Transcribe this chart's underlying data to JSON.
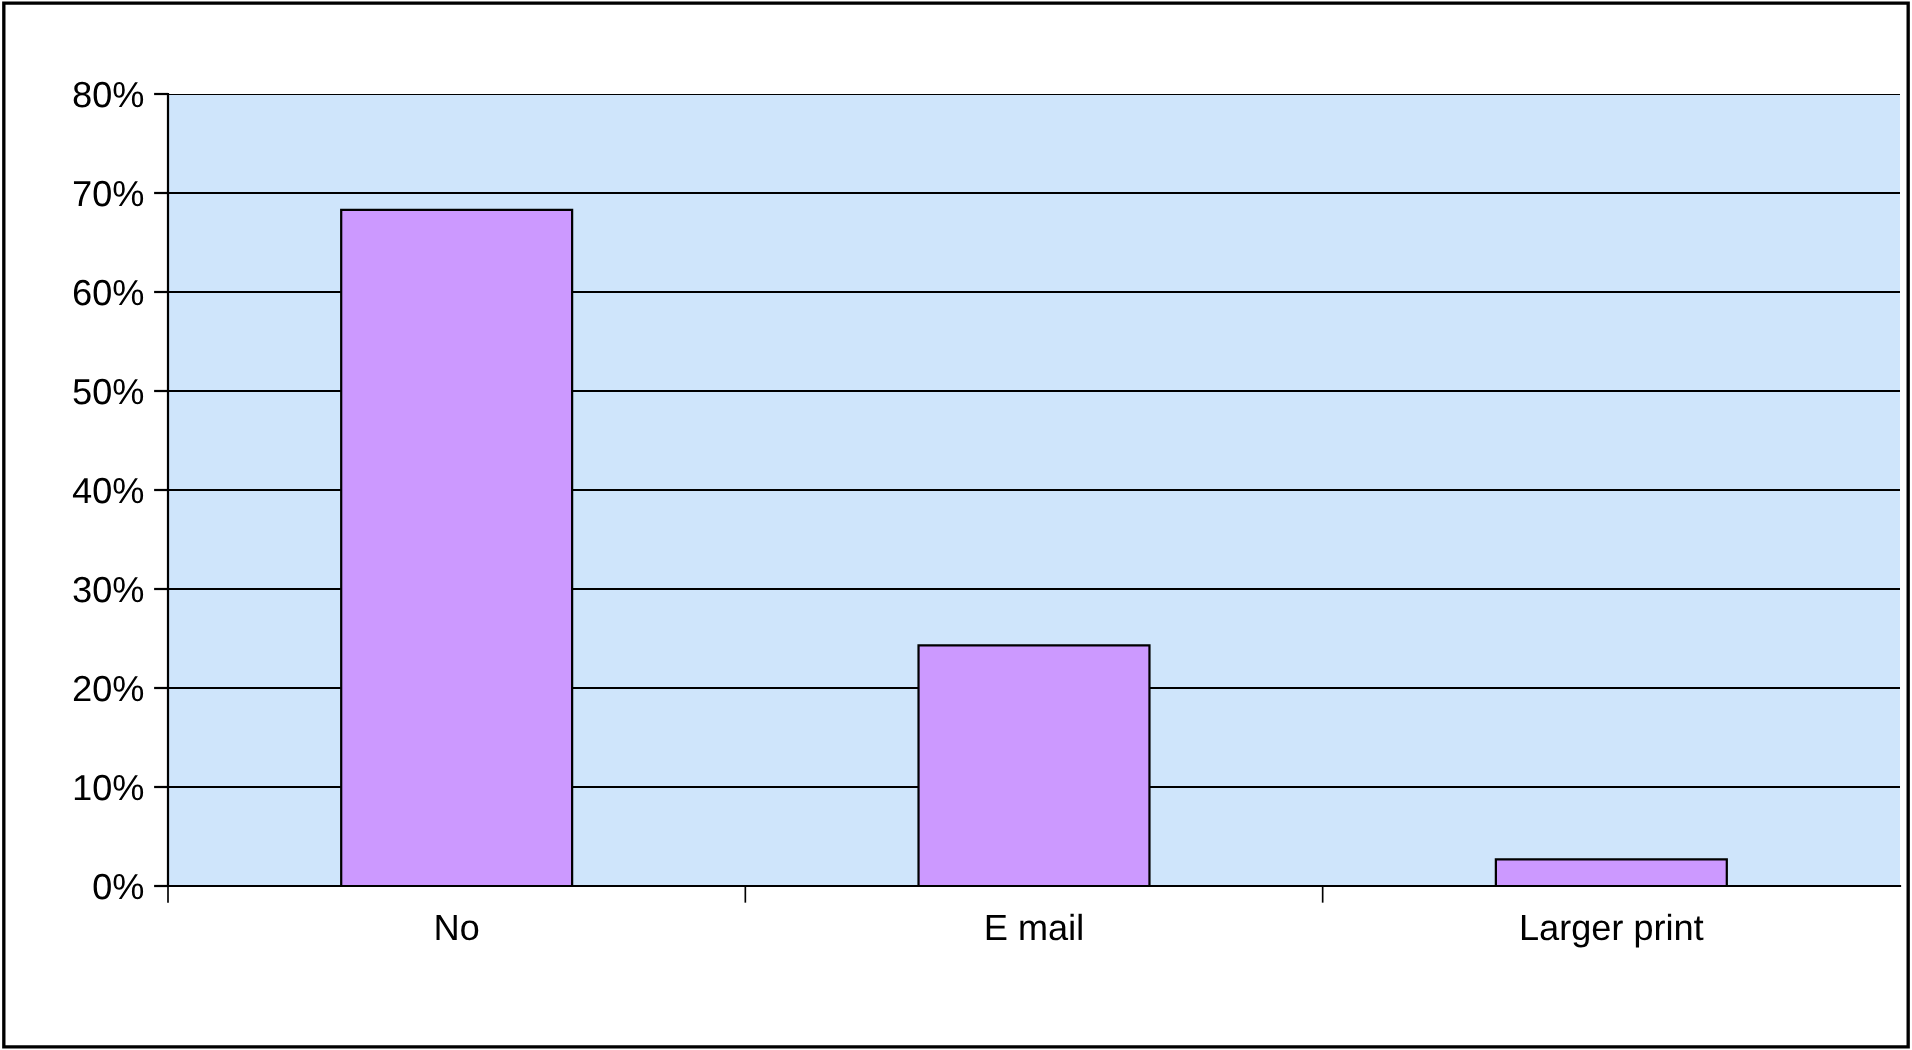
{
  "chart_data": {
    "type": "bar",
    "categories": [
      "No",
      "E mail",
      "Larger print"
    ],
    "values": [
      68.3,
      24.3,
      2.7
    ],
    "color": "#cc99ff",
    "ylim": [
      0,
      80
    ],
    "yticks": [
      {
        "value": 0,
        "label": "0%"
      },
      {
        "value": 10,
        "label": "10%"
      },
      {
        "value": 20,
        "label": "20%"
      },
      {
        "value": 30,
        "label": "30%"
      },
      {
        "value": 40,
        "label": "40%"
      },
      {
        "value": 50,
        "label": "50%"
      },
      {
        "value": 60,
        "label": "60%"
      },
      {
        "value": 70,
        "label": "70%"
      },
      {
        "value": 80,
        "label": "80%"
      }
    ],
    "grid": "y",
    "legend": false
  }
}
